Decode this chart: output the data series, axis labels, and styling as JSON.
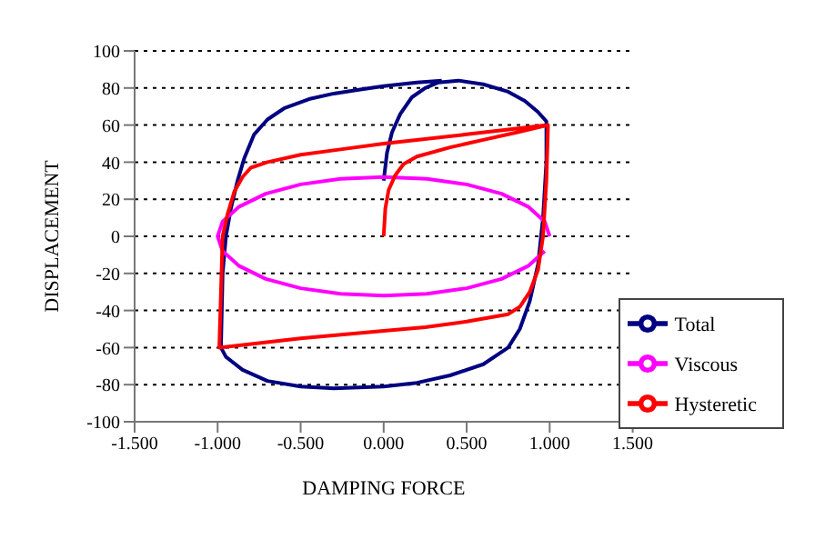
{
  "chart_data": {
    "type": "line",
    "xlabel": "DAMPING FORCE",
    "ylabel": "DISPLACEMENT",
    "xlim": [
      -1.5,
      1.5
    ],
    "xticks": [
      {
        "value": -1.5,
        "label": "-1.500"
      },
      {
        "value": -1,
        "label": "-1.000"
      },
      {
        "value": -0.5,
        "label": "-0.500"
      },
      {
        "value": 0,
        "label": "0.000"
      },
      {
        "value": 0.5,
        "label": "0.500"
      },
      {
        "value": 1,
        "label": "1.000"
      },
      {
        "value": 1.5,
        "label": "1.500"
      }
    ],
    "ylim": [
      -100,
      100
    ],
    "yticks": [
      -100,
      -80,
      -60,
      -40,
      -20,
      0,
      20,
      40,
      60,
      80,
      100
    ],
    "grid": "y",
    "legend": "bottom right",
    "marker": "none",
    "line_style": "solid",
    "series": [
      {
        "name": "Total",
        "color": "#000080",
        "x": [
          0,
          0.02,
          0.05,
          0.1,
          0.17,
          0.25,
          0.33,
          0.45,
          0.6,
          0.75,
          0.85,
          0.93,
          0.98,
          0.98,
          0.96,
          0.93,
          0.88,
          0.82,
          0.75,
          0.6,
          0.4,
          0.2,
          0,
          -0.3,
          -0.5,
          -0.7,
          -0.85,
          -0.95,
          -0.98,
          -0.97,
          -0.95,
          -0.92,
          -0.88,
          -0.84,
          -0.78,
          -0.7,
          -0.6,
          -0.45,
          -0.3,
          -0.15,
          0,
          0.2,
          0.35
        ],
        "values": [
          30,
          45,
          56,
          66,
          75,
          80,
          83,
          84,
          82,
          78,
          73,
          67,
          62,
          40,
          10,
          -15,
          -35,
          -50,
          -60,
          -69,
          -75,
          -79,
          -81,
          -82,
          -81,
          -78,
          -72,
          -65,
          -60,
          -20,
          0,
          15,
          30,
          42,
          55,
          63,
          69,
          74,
          77,
          79,
          81,
          83,
          84
        ]
      },
      {
        "name": "Viscous",
        "color": "#ff00ff",
        "x": [
          1,
          0.97,
          0.87,
          0.71,
          0.5,
          0.26,
          0,
          -0.26,
          -0.5,
          -0.71,
          -0.87,
          -0.97,
          -1,
          -0.97,
          -0.87,
          -0.71,
          -0.5,
          -0.26,
          0,
          0.26,
          0.5,
          0.71,
          0.87,
          0.97
        ],
        "values": [
          0,
          8,
          16,
          23,
          28,
          31,
          32,
          31,
          28,
          23,
          16,
          8,
          0,
          -8,
          -16,
          -23,
          -28,
          -31,
          -32,
          -31,
          -28,
          -23,
          -16,
          -8
        ]
      },
      {
        "name": "Hysteretic",
        "color": "#ff0000",
        "x": [
          0,
          0.01,
          0.03,
          0.07,
          0.12,
          0.2,
          0.4,
          0.6,
          0.8,
          0.99,
          0.98,
          0.96,
          0.93,
          0.88,
          0.82,
          0.75,
          0.5,
          0.25,
          0,
          -0.5,
          -0.99,
          -0.98,
          -0.97,
          -0.94,
          -0.9,
          -0.85,
          -0.8,
          -0.7,
          -0.5,
          -0.25,
          0,
          0.5,
          0.99
        ],
        "values": [
          0,
          15,
          25,
          33,
          39,
          43,
          48,
          52,
          56,
          60,
          30,
          0,
          -18,
          -30,
          -38,
          -42,
          -46,
          -49,
          -51,
          -55,
          -60,
          -30,
          0,
          12,
          24,
          32,
          37,
          40,
          44,
          47,
          50,
          55,
          60
        ]
      }
    ]
  }
}
